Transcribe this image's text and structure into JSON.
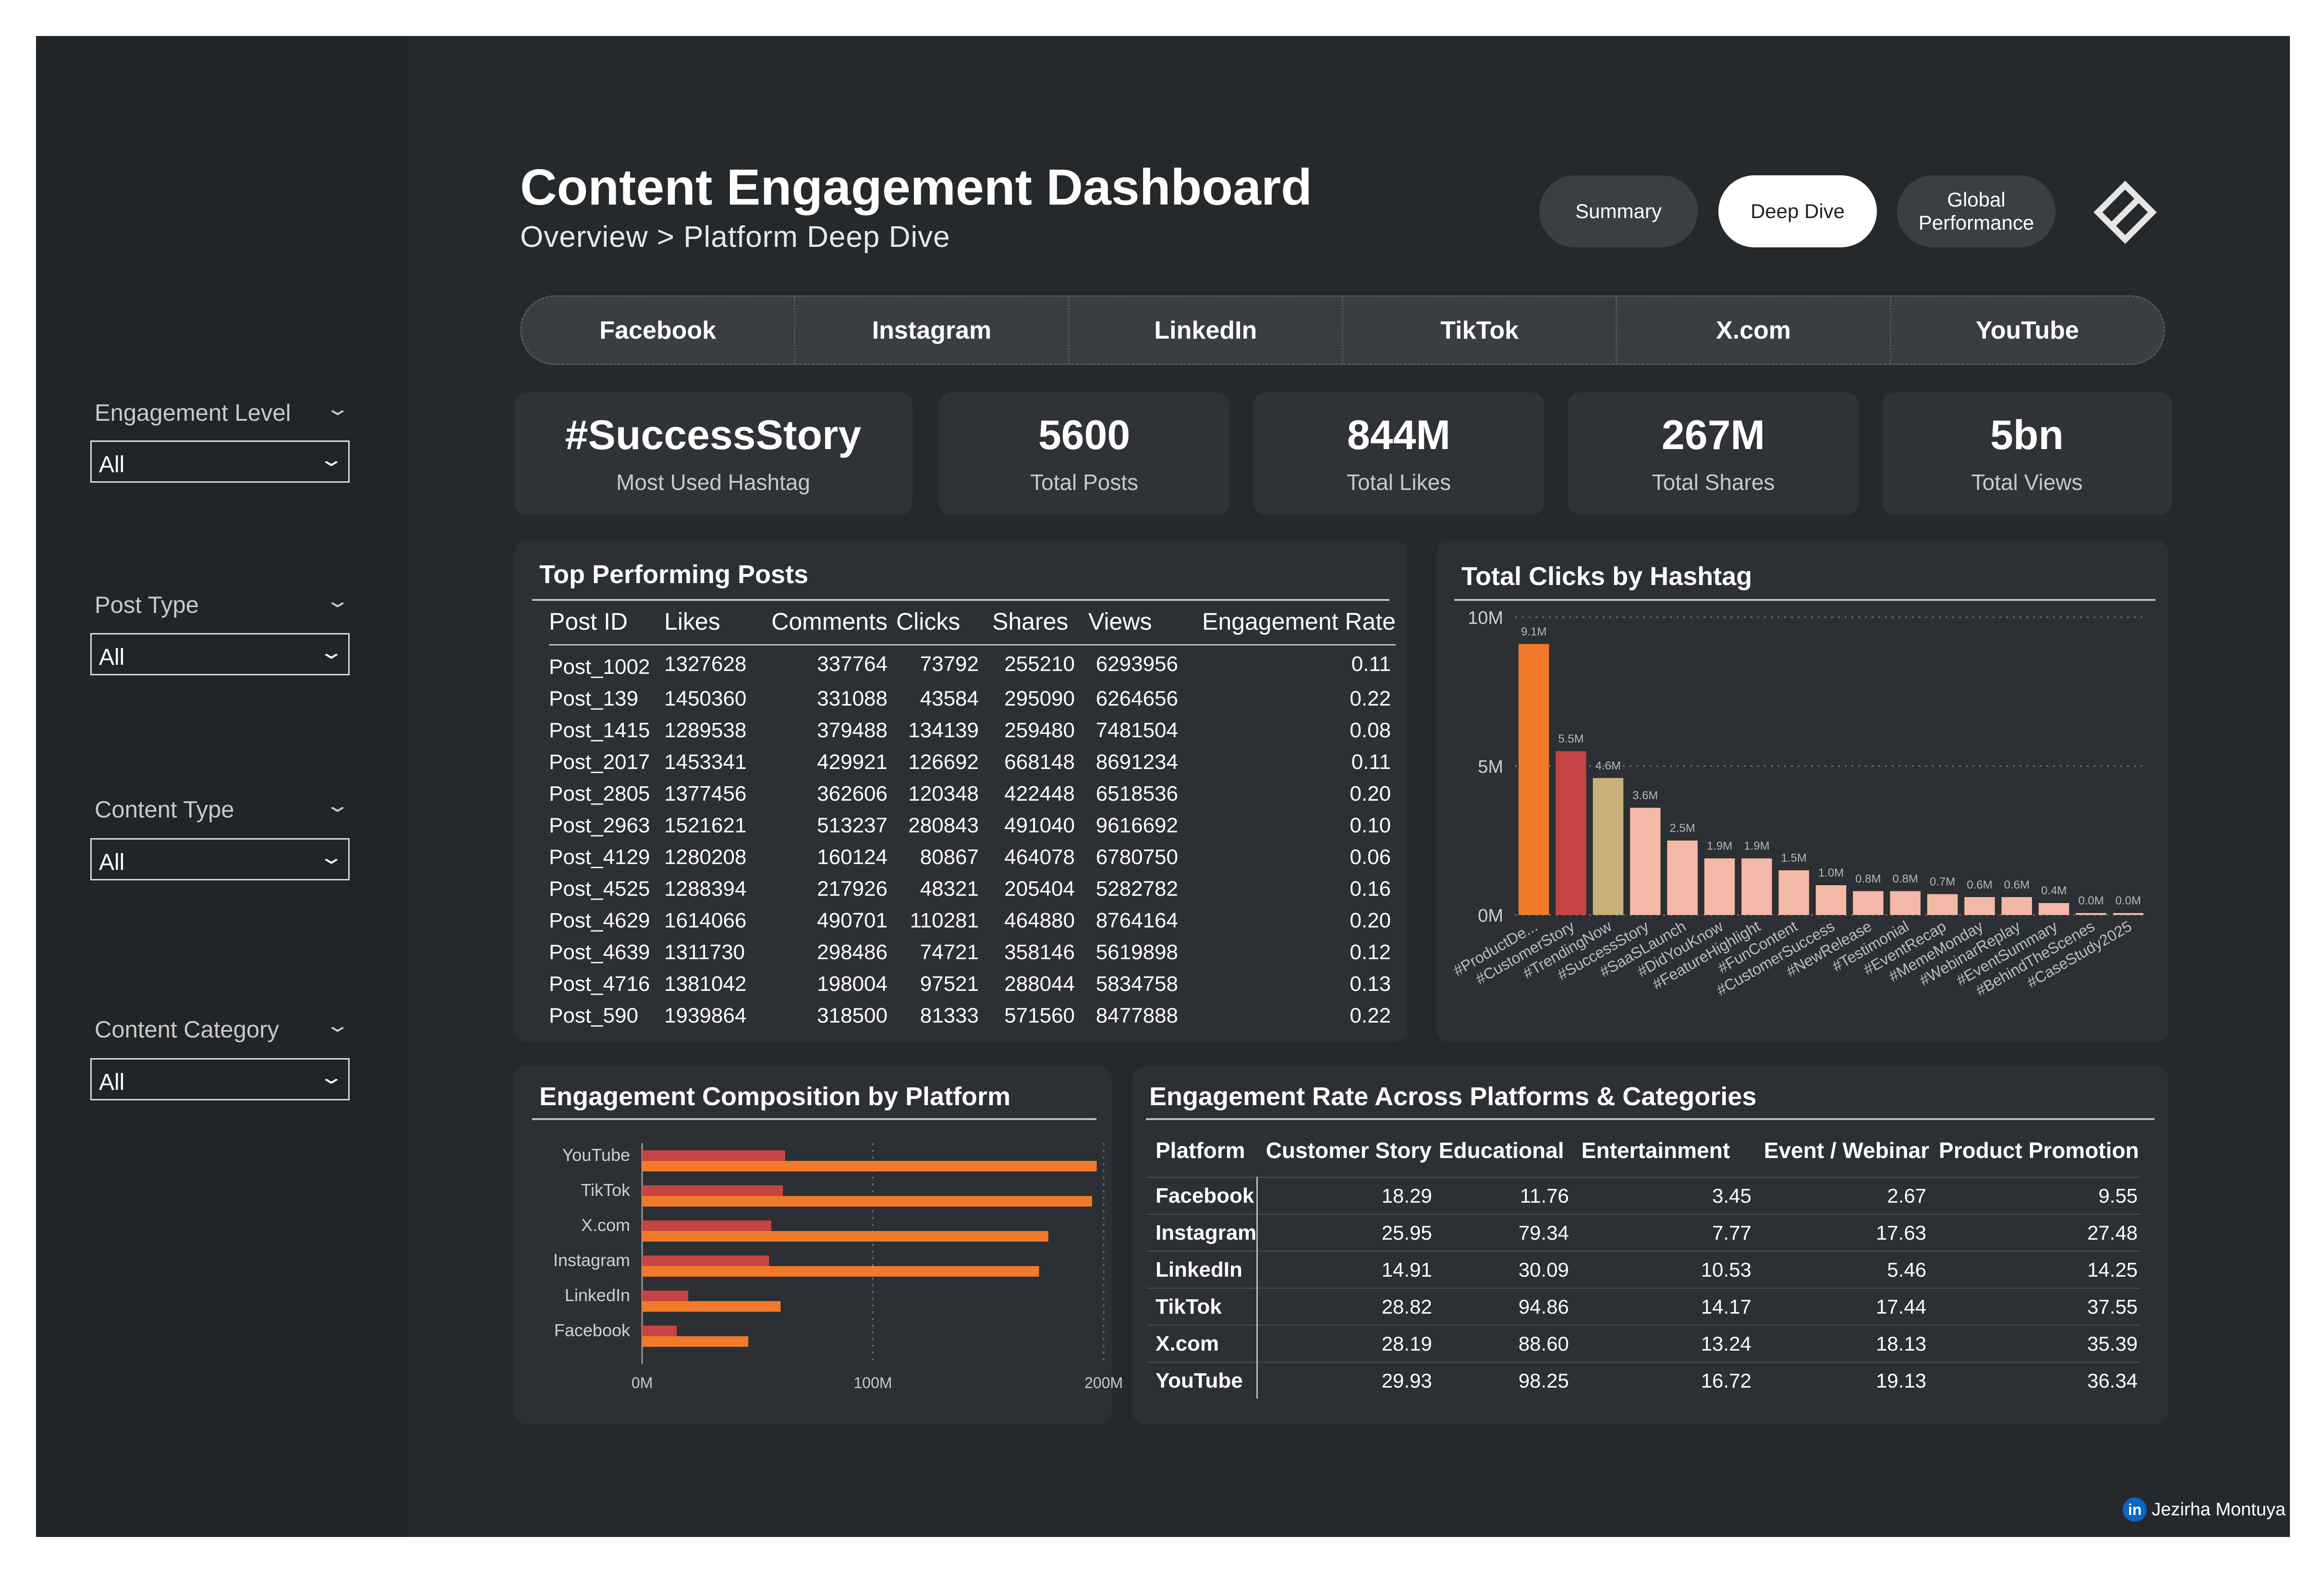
{
  "header": {
    "title": "Content Engagement Dashboard",
    "breadcrumb_root": "Overview",
    "breadcrumb_sep": ">",
    "breadcrumb_current": "Platform Deep Dive"
  },
  "nav": {
    "summary": "Summary",
    "deep_dive": "Deep Dive",
    "global_1": "Global",
    "global_2": "Performance",
    "logo_icon": "diamond-logo-icon"
  },
  "platforms": [
    "Facebook",
    "Instagram",
    "LinkedIn",
    "TikTok",
    "X.com",
    "YouTube"
  ],
  "filters": [
    {
      "label": "Engagement Level",
      "value": "All"
    },
    {
      "label": "Post Type",
      "value": "All"
    },
    {
      "label": "Content Type",
      "value": "All"
    },
    {
      "label": "Content Category",
      "value": "All"
    }
  ],
  "kpis": [
    {
      "value": "#SuccessStory",
      "label": "Most Used Hashtag"
    },
    {
      "value": "5600",
      "label": "Total Posts"
    },
    {
      "value": "844M",
      "label": "Total Likes"
    },
    {
      "value": "267M",
      "label": "Total Shares"
    },
    {
      "value": "5bn",
      "label": "Total Views"
    }
  ],
  "top_posts": {
    "title": "Top Performing Posts",
    "columns": [
      "Post ID",
      "Likes",
      "Comments",
      "Clicks",
      "Shares",
      "Views",
      "Engagement Rate"
    ],
    "rows": [
      [
        "Post_1002",
        "1327628",
        "337764",
        "73792",
        "255210",
        "6293956",
        "0.11"
      ],
      [
        "Post_139",
        "1450360",
        "331088",
        "43584",
        "295090",
        "6264656",
        "0.22"
      ],
      [
        "Post_1415",
        "1289538",
        "379488",
        "134139",
        "259480",
        "7481504",
        "0.08"
      ],
      [
        "Post_2017",
        "1453341",
        "429921",
        "126692",
        "668148",
        "8691234",
        "0.11"
      ],
      [
        "Post_2805",
        "1377456",
        "362606",
        "120348",
        "422448",
        "6518536",
        "0.20"
      ],
      [
        "Post_2963",
        "1521621",
        "513237",
        "280843",
        "491040",
        "9616692",
        "0.10"
      ],
      [
        "Post_4129",
        "1280208",
        "160124",
        "80867",
        "464078",
        "6780750",
        "0.06"
      ],
      [
        "Post_4525",
        "1288394",
        "217926",
        "48321",
        "205404",
        "5282782",
        "0.16"
      ],
      [
        "Post_4629",
        "1614066",
        "490701",
        "110281",
        "464880",
        "8764164",
        "0.20"
      ],
      [
        "Post_4639",
        "1311730",
        "298486",
        "74721",
        "358146",
        "5619898",
        "0.12"
      ],
      [
        "Post_4716",
        "1381042",
        "198004",
        "97521",
        "288044",
        "5834758",
        "0.13"
      ],
      [
        "Post_590",
        "1939864",
        "318500",
        "81333",
        "571560",
        "8477888",
        "0.22"
      ]
    ]
  },
  "engagement_rates": {
    "title": "Engagement Rate Across Platforms & Categories",
    "columns": [
      "Platform",
      "Customer Story",
      "Educational",
      "Entertainment",
      "Event / Webinar",
      "Product Promotion"
    ],
    "rows": [
      [
        "Facebook",
        "18.29",
        "11.76",
        "3.45",
        "2.67",
        "9.55"
      ],
      [
        "Instagram",
        "25.95",
        "79.34",
        "7.77",
        "17.63",
        "27.48"
      ],
      [
        "LinkedIn",
        "14.91",
        "30.09",
        "10.53",
        "5.46",
        "14.25"
      ],
      [
        "TikTok",
        "28.82",
        "94.86",
        "14.17",
        "17.44",
        "37.55"
      ],
      [
        "X.com",
        "28.19",
        "88.60",
        "13.24",
        "18.13",
        "35.39"
      ],
      [
        "YouTube",
        "29.93",
        "98.25",
        "16.72",
        "19.13",
        "36.34"
      ]
    ]
  },
  "chart_data": [
    {
      "type": "bar",
      "title": "Total Clicks by Hashtag",
      "categories": [
        "#ProductDe...",
        "#CustomerStory",
        "#TrendingNow",
        "#SuccessStory",
        "#SaaSLaunch",
        "#DidYouKnow",
        "#FeatureHighlight",
        "#FunContent",
        "#CustomerSuccess",
        "#NewRelease",
        "#Testimonial",
        "#EventRecap",
        "#MemeMonday",
        "#WebinarReplay",
        "#EventSummary",
        "#BehindTheScenes",
        "#CaseStudy2025"
      ],
      "values": [
        9.1,
        5.5,
        4.6,
        3.6,
        2.5,
        1.9,
        1.9,
        1.5,
        1.0,
        0.8,
        0.8,
        0.7,
        0.6,
        0.6,
        0.4,
        0.0,
        0.0
      ],
      "labels": [
        "9.1M",
        "5.5M",
        "4.6M",
        "3.6M",
        "2.5M",
        "1.9M",
        "1.9M",
        "1.5M",
        "1.0M",
        "0.8M",
        "0.8M",
        "0.7M",
        "0.6M",
        "0.6M",
        "0.4M",
        "0.0M",
        "0.0M"
      ],
      "colors": [
        "#f07a2a",
        "#c74444",
        "#c7b07a",
        "#f4b9a6",
        "#f4b9a6",
        "#f4b9a6",
        "#f4b9a6",
        "#f4b9a6",
        "#f4b9a6",
        "#f4b9a6",
        "#f4b9a6",
        "#f4b9a6",
        "#f4b9a6",
        "#f4b9a6",
        "#f4b9a6",
        "#f4b9a6",
        "#f4b9a6"
      ],
      "yticks": [
        "0M",
        "5M",
        "10M"
      ],
      "ylim": [
        0,
        10
      ],
      "y_unit": "M",
      "grid": true
    },
    {
      "type": "bar",
      "orientation": "horizontal",
      "title": "Engagement Composition by Platform",
      "categories": [
        "YouTube",
        "TikTok",
        "X.com",
        "Instagram",
        "LinkedIn",
        "Facebook"
      ],
      "series": [
        {
          "values": [
            62,
            61,
            56,
            55,
            20,
            15
          ],
          "color": "#c74444"
        },
        {
          "values": [
            197,
            195,
            176,
            172,
            60,
            46
          ],
          "color": "#f07a2a"
        }
      ],
      "xticks": [
        "0M",
        "100M",
        "200M"
      ],
      "xlim": [
        0,
        200
      ],
      "x_unit": "M",
      "grid": true
    }
  ],
  "footer": {
    "icon": "linkedin-icon",
    "icon_text": "in",
    "author": "Jezirha Montuya"
  }
}
